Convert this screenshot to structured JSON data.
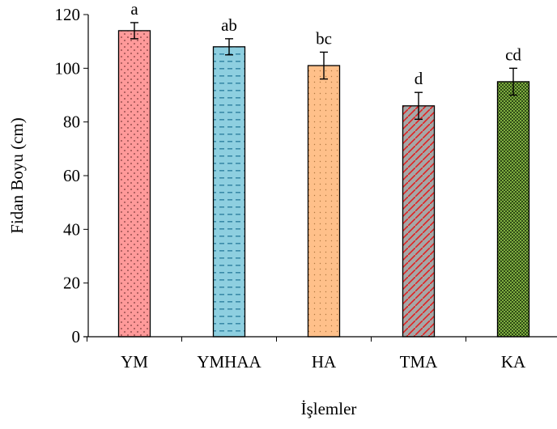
{
  "chart_data": {
    "type": "bar",
    "title": "",
    "xlabel": "İşlemler",
    "ylabel": "Fidan Boyu (cm)",
    "ylim": [
      0,
      120
    ],
    "yticks": [
      0,
      20,
      40,
      60,
      80,
      100,
      120
    ],
    "grid": false,
    "legend": "none",
    "categories": [
      "YM",
      "YMHAA",
      "HA",
      "TMA",
      "KA"
    ],
    "values": [
      114,
      108,
      101,
      86,
      95
    ],
    "error": [
      3,
      3,
      5,
      5,
      5
    ],
    "significance_labels": [
      "a",
      "ab",
      "bc",
      "d",
      "cd"
    ],
    "bar_styles": [
      {
        "fill": "#ff9a9a",
        "pattern": "dots",
        "pattern_color": "#7a3a3a"
      },
      {
        "fill": "#8ecfe0",
        "pattern": "dashes",
        "pattern_color": "#3a8aa8"
      },
      {
        "fill": "#ffc08a",
        "pattern": "fine-dots",
        "pattern_color": "#b07840"
      },
      {
        "fill": "#a6a6a6",
        "pattern": "red-diagonal",
        "pattern_color": "#e02020"
      },
      {
        "fill": "#7fae3f",
        "pattern": "checker",
        "pattern_color": "#2e4a16"
      }
    ]
  }
}
